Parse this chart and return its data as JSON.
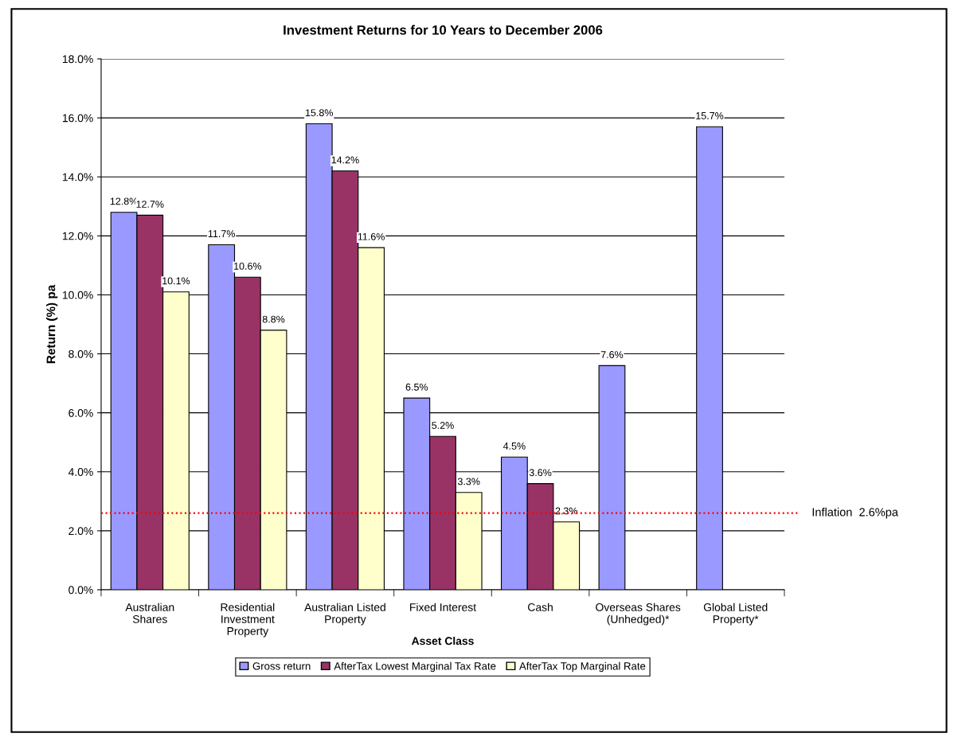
{
  "chart_data": {
    "type": "bar",
    "title": "Investment Returns for 10 Years to December 2006",
    "xlabel": "Asset Class",
    "ylabel": "Return (%) pa",
    "categories": [
      "Australian\nShares",
      "Residential\nInvestment\nProperty",
      "Australian Listed\nProperty",
      "Fixed Interest",
      "Cash",
      "Overseas Shares\n(Unhedged)*",
      "Global Listed\nProperty*"
    ],
    "series": [
      {
        "name": "Gross return",
        "color": "#9999ff",
        "values": [
          12.8,
          11.7,
          15.8,
          6.5,
          4.5,
          7.6,
          15.7
        ],
        "value_labels": [
          "12.8%",
          "11.7%",
          "15.8%",
          "6.5%",
          "4.5%",
          "7.6%",
          "15.7%"
        ]
      },
      {
        "name": "AfterTax Lowest Marginal Tax Rate",
        "color": "#993366",
        "values": [
          12.7,
          10.6,
          14.2,
          5.2,
          3.6,
          null,
          null
        ],
        "value_labels": [
          "12.7%",
          "10.6%",
          "14.2%",
          "5.2%",
          "3.6%",
          null,
          null
        ]
      },
      {
        "name": "AfterTax Top Marginal Rate",
        "color": "#ffffcc",
        "values": [
          10.1,
          8.8,
          11.6,
          3.3,
          2.3,
          null,
          null
        ],
        "value_labels": [
          "10.1%",
          "8.8%",
          "11.6%",
          "3.3%",
          "2.3%",
          null,
          null
        ]
      }
    ],
    "ylim": [
      0,
      18
    ],
    "yticks": [
      {
        "value": 0,
        "label": "0.0%"
      },
      {
        "value": 2,
        "label": "2.0%"
      },
      {
        "value": 4,
        "label": "4.0%"
      },
      {
        "value": 6,
        "label": "6.0%"
      },
      {
        "value": 8,
        "label": "8.0%"
      },
      {
        "value": 10,
        "label": "10.0%"
      },
      {
        "value": 12,
        "label": "12.0%"
      },
      {
        "value": 14,
        "label": "14.0%"
      },
      {
        "value": 16,
        "label": "16.0%"
      },
      {
        "value": 18,
        "label": "18.0%"
      }
    ],
    "ref_lines": [
      {
        "axis": "y",
        "value": 2.6,
        "label": "Inflation  2.6%pa",
        "color": "#ff0000",
        "line_style": "dotted"
      }
    ],
    "grid": "y",
    "legend": "bottom"
  }
}
